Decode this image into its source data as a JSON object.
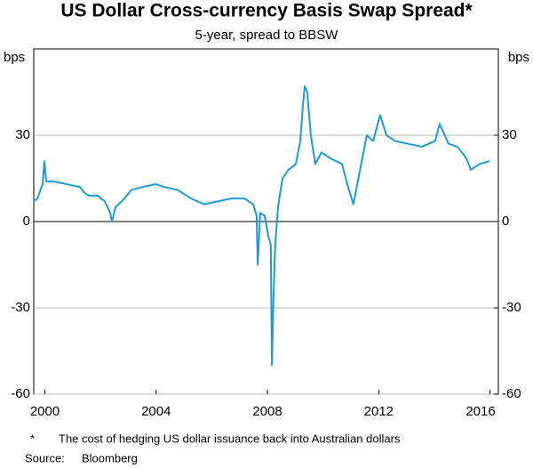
{
  "chart_data": {
    "type": "line",
    "title": "US Dollar Cross-currency Basis Swap Spread*",
    "subtitle": "5-year, spread to BBSW",
    "y_label": "bps",
    "y2_label": "bps",
    "footnote_marker": "*",
    "footnote": "The cost of hedging US dollar issuance back into Australian dollars",
    "source_label": "Source:",
    "source": "Bloomberg",
    "xlim": [
      1999.6,
      2016.3
    ],
    "xticks": [
      2000,
      2004,
      2008,
      2012,
      2016
    ],
    "ylim": [
      -60,
      60
    ],
    "yticks": [
      -60,
      -30,
      0,
      30
    ],
    "y2lim": [
      -60,
      60
    ],
    "y2ticks": [
      -60,
      -30,
      0,
      30
    ],
    "grid": true,
    "x": [
      1999.6,
      1999.73,
      1999.92,
      1999.98,
      2000.05,
      2000.3,
      2000.78,
      2001.26,
      2001.42,
      2001.58,
      2001.9,
      2002.15,
      2002.35,
      2002.41,
      2002.54,
      2002.86,
      2003.11,
      2003.5,
      2003.98,
      2004.29,
      2004.77,
      2005.25,
      2005.73,
      2006.21,
      2006.69,
      2007.17,
      2007.49,
      2007.61,
      2007.65,
      2007.74,
      2007.9,
      2008.03,
      2008.12,
      2008.16,
      2008.22,
      2008.28,
      2008.38,
      2008.54,
      2008.76,
      2009.02,
      2009.18,
      2009.27,
      2009.34,
      2009.43,
      2009.56,
      2009.72,
      2009.94,
      2010.26,
      2010.68,
      2010.9,
      2011.09,
      2011.25,
      2011.41,
      2011.57,
      2011.8,
      2012.05,
      2012.28,
      2012.59,
      2013.07,
      2013.55,
      2014.03,
      2014.19,
      2014.51,
      2014.83,
      2015.15,
      2015.31,
      2015.63,
      2015.98
    ],
    "series": [
      {
        "color": "#1f9ad6",
        "values": [
          7,
          8,
          13,
          21,
          14,
          14,
          13,
          12,
          10,
          9,
          9,
          7,
          3,
          0,
          5,
          8,
          11,
          12,
          13,
          12,
          11,
          8,
          6,
          7,
          8,
          8,
          6,
          2,
          -15,
          3,
          2,
          -5,
          -8,
          -50,
          -25,
          -8,
          5,
          15,
          18,
          20,
          28,
          40,
          47,
          45,
          30,
          20,
          24,
          22,
          20,
          12,
          6,
          14,
          22,
          30,
          28,
          37,
          30,
          28,
          27,
          26,
          28,
          34,
          27,
          26,
          22,
          18,
          20,
          21
        ]
      }
    ]
  }
}
